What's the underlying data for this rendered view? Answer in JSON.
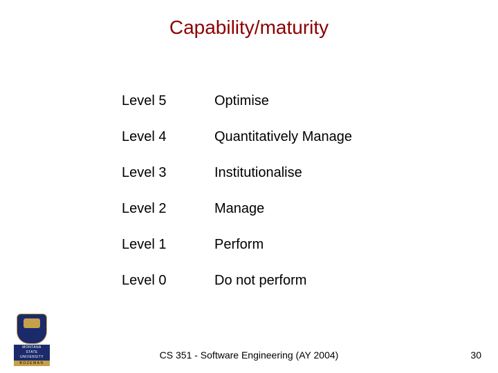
{
  "title": {
    "text": "Capability/maturity",
    "color": "#8b0000",
    "fontsize": 28
  },
  "levels": [
    {
      "label": "Level 5",
      "description": "Optimise"
    },
    {
      "label": "Level 4",
      "description": "Quantitatively Manage"
    },
    {
      "label": "Level 3",
      "description": "Institutionalise"
    },
    {
      "label": "Level 2",
      "description": "Manage"
    },
    {
      "label": "Level 1",
      "description": "Perform"
    },
    {
      "label": "Level 0",
      "description": "Do not perform"
    }
  ],
  "footer": "CS 351 - Software Engineering (AY 2004)",
  "page_number": "30",
  "logo": {
    "name": "MONTANA",
    "subname": "STATE UNIVERSITY",
    "city": "BOZEMAN"
  },
  "colors": {
    "title": "#8b0000",
    "text": "#000000",
    "background": "#ffffff",
    "logo_navy": "#1a2a6b",
    "logo_gold": "#c4a04a"
  },
  "typography": {
    "title_fontsize": 28,
    "body_fontsize": 20,
    "footer_fontsize": 14,
    "font_family": "Arial"
  }
}
